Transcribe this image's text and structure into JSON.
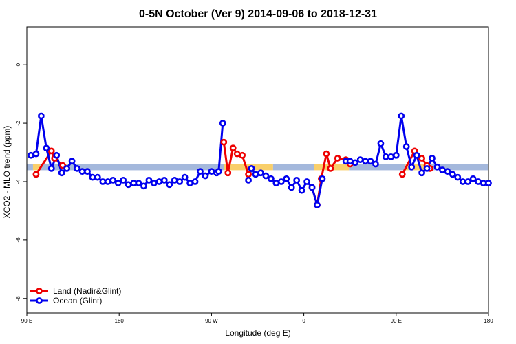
{
  "chart_data": {
    "type": "line",
    "title": "0-5N October (Ver 9)   2014-09-06 to 2018-12-31",
    "xlabel": "Longitude (deg E)",
    "ylabel": "XCO2 - MLO trend (ppm)",
    "x_ticks": [
      {
        "value": 90,
        "label": "90 E"
      },
      {
        "value": 180,
        "label": "180"
      },
      {
        "value": 270,
        "label": "90 W"
      },
      {
        "value": 360,
        "label": "0"
      },
      {
        "value": 450,
        "label": "90 E"
      },
      {
        "value": 540,
        "label": "180"
      }
    ],
    "y_ticks": [
      {
        "value": 0,
        "label": "0"
      },
      {
        "value": -2,
        "label": "-2"
      },
      {
        "value": -4,
        "label": "-4"
      },
      {
        "value": -6,
        "label": "-6"
      },
      {
        "value": -8,
        "label": "-8"
      }
    ],
    "xlim": [
      90,
      540
    ],
    "ylim": [
      -8.5,
      1.3
    ],
    "grid": false,
    "legend_position": "bottom-left",
    "band": {
      "y_center": -3.5,
      "height": 0.22,
      "colors": {
        "ocean": "#a4b8dc",
        "land": "#f9cf6a"
      }
    },
    "band_segments": [
      {
        "type": "ocean",
        "x": [
          90,
          96
        ]
      },
      {
        "type": "land",
        "x": [
          96,
          103
        ]
      },
      {
        "type": "ocean",
        "x": [
          103,
          127
        ]
      },
      {
        "type": "land",
        "x": [
          127,
          129
        ]
      },
      {
        "type": "ocean",
        "x": [
          129,
          282
        ]
      },
      {
        "type": "land",
        "x": [
          282,
          330
        ]
      },
      {
        "type": "ocean",
        "x": [
          330,
          370
        ]
      },
      {
        "type": "land",
        "x": [
          370,
          404
        ]
      },
      {
        "type": "ocean",
        "x": [
          404,
          459
        ]
      },
      {
        "type": "land",
        "x": [
          459,
          462
        ]
      },
      {
        "type": "ocean",
        "x": [
          462,
          466
        ]
      },
      {
        "type": "land",
        "x": [
          466,
          482
        ]
      },
      {
        "type": "ocean",
        "x": [
          482,
          540
        ]
      }
    ],
    "series": [
      {
        "name": "Land (Nadir&Glint)",
        "color": "#ee0000",
        "segments": [
          {
            "x": [
              99,
              114,
              117,
              125
            ],
            "y": [
              -3.75,
              -2.95,
              -3.2,
              -3.45
            ]
          },
          {
            "x": [
              282,
              286,
              291,
              295,
              300,
              306
            ],
            "y": [
              -2.65,
              -3.7,
              -2.85,
              -3.05,
              -3.1,
              -3.75
            ]
          },
          {
            "x": [
              368,
              373,
              377,
              382,
              386,
              393,
              401,
              405
            ],
            "y": [
              -4.2,
              -4.8,
              -3.9,
              -3.05,
              -3.55,
              -3.2,
              -3.25,
              -3.4
            ]
          },
          {
            "x": [
              456,
              468,
              475,
              480,
              483
            ],
            "y": [
              -3.75,
              -2.95,
              -3.2,
              -3.45,
              -3.55
            ]
          }
        ]
      },
      {
        "name": "Ocean (Glint)",
        "color": "#0000ee",
        "segments": [
          {
            "x": [
              94,
              99,
              104,
              109,
              114,
              119,
              124,
              129,
              134,
              139,
              144,
              149,
              154,
              159,
              164,
              169,
              174,
              179,
              184,
              189,
              194,
              199,
              204,
              209,
              214,
              219,
              224,
              229,
              234,
              239,
              244,
              249,
              254,
              259,
              264,
              270,
              275,
              277,
              281
            ],
            "y": [
              -3.1,
              -3.05,
              -1.75,
              -2.85,
              -3.55,
              -3.1,
              -3.7,
              -3.55,
              -3.3,
              -3.55,
              -3.65,
              -3.65,
              -3.85,
              -3.85,
              -4.0,
              -4.0,
              -3.95,
              -4.05,
              -3.95,
              -4.1,
              -4.05,
              -4.05,
              -4.15,
              -3.95,
              -4.05,
              -4.0,
              -3.95,
              -4.1,
              -3.95,
              -4.0,
              -3.85,
              -4.05,
              -4.0,
              -3.65,
              -3.8,
              -3.65,
              -3.7,
              -3.65,
              -2.0
            ]
          },
          {
            "x": [
              306,
              309,
              313,
              318,
              323,
              328,
              333,
              338,
              343,
              348,
              353,
              358,
              363,
              368,
              373,
              378
            ],
            "y": [
              -3.95,
              -3.55,
              -3.75,
              -3.7,
              -3.8,
              -3.9,
              -4.05,
              -4.0,
              -3.9,
              -4.2,
              -3.95,
              -4.3,
              -4.0,
              -4.2,
              -4.8,
              -3.9
            ]
          },
          {
            "x": [
              401,
              405,
              410,
              415,
              420,
              425,
              430,
              435,
              440,
              445,
              450,
              455,
              460,
              465,
              470,
              475,
              480,
              485,
              490,
              495,
              500,
              505,
              510,
              515,
              520,
              525,
              530,
              535,
              540
            ],
            "y": [
              -3.3,
              -3.3,
              -3.35,
              -3.25,
              -3.3,
              -3.3,
              -3.4,
              -2.7,
              -3.15,
              -3.15,
              -3.1,
              -1.75,
              -2.8,
              -3.5,
              -3.1,
              -3.7,
              -3.55,
              -3.2,
              -3.5,
              -3.6,
              -3.65,
              -3.75,
              -3.85,
              -4.0,
              -4.0,
              -3.9,
              -4.0,
              -4.05,
              -4.05
            ]
          }
        ]
      }
    ]
  }
}
